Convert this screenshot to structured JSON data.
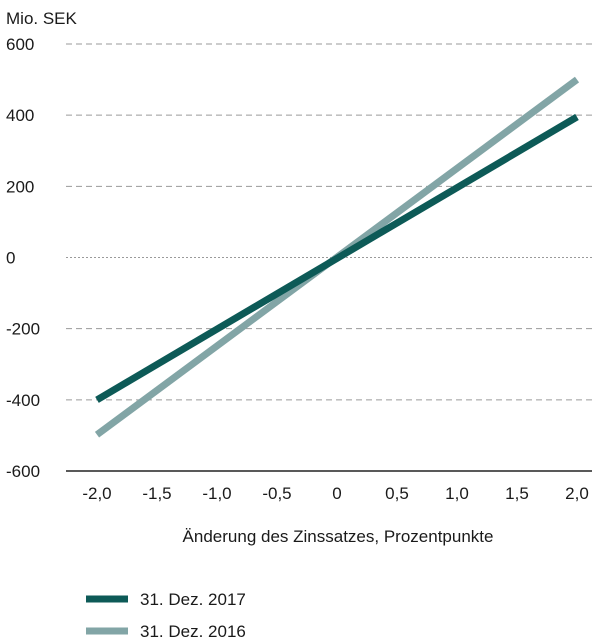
{
  "chart_data": {
    "type": "line",
    "y_unit_label": "Mio. SEK",
    "xlabel": "Änderung des Zinssatzes, Prozentpunkte",
    "ylabel": "",
    "xlim": [
      -2.0,
      2.0
    ],
    "ylim": [
      -600,
      600
    ],
    "x_ticks": [
      -2.0,
      -1.5,
      -1.0,
      -0.5,
      0,
      0.5,
      1.0,
      1.5,
      2.0
    ],
    "x_tick_labels": [
      "-2,0",
      "-1,5",
      "-1,0",
      "-0,5",
      "0",
      "0,5",
      "1,0",
      "1,5",
      "2,0"
    ],
    "y_ticks": [
      600,
      400,
      200,
      0,
      -200,
      -400,
      -600
    ],
    "y_tick_labels": [
      "600",
      "400",
      "200",
      "0",
      "-200",
      "-400",
      "-600"
    ],
    "grid": "horizontal-dashed",
    "legend_position": "bottom-left",
    "series": [
      {
        "name": "31. Dez. 2017",
        "color": "#0d5a57",
        "x": [
          -2.0,
          2.0
        ],
        "y": [
          -400,
          395
        ]
      },
      {
        "name": "31. Dez. 2016",
        "color": "#82a5a6",
        "x": [
          -2.0,
          2.0
        ],
        "y": [
          -498,
          500
        ]
      }
    ]
  }
}
